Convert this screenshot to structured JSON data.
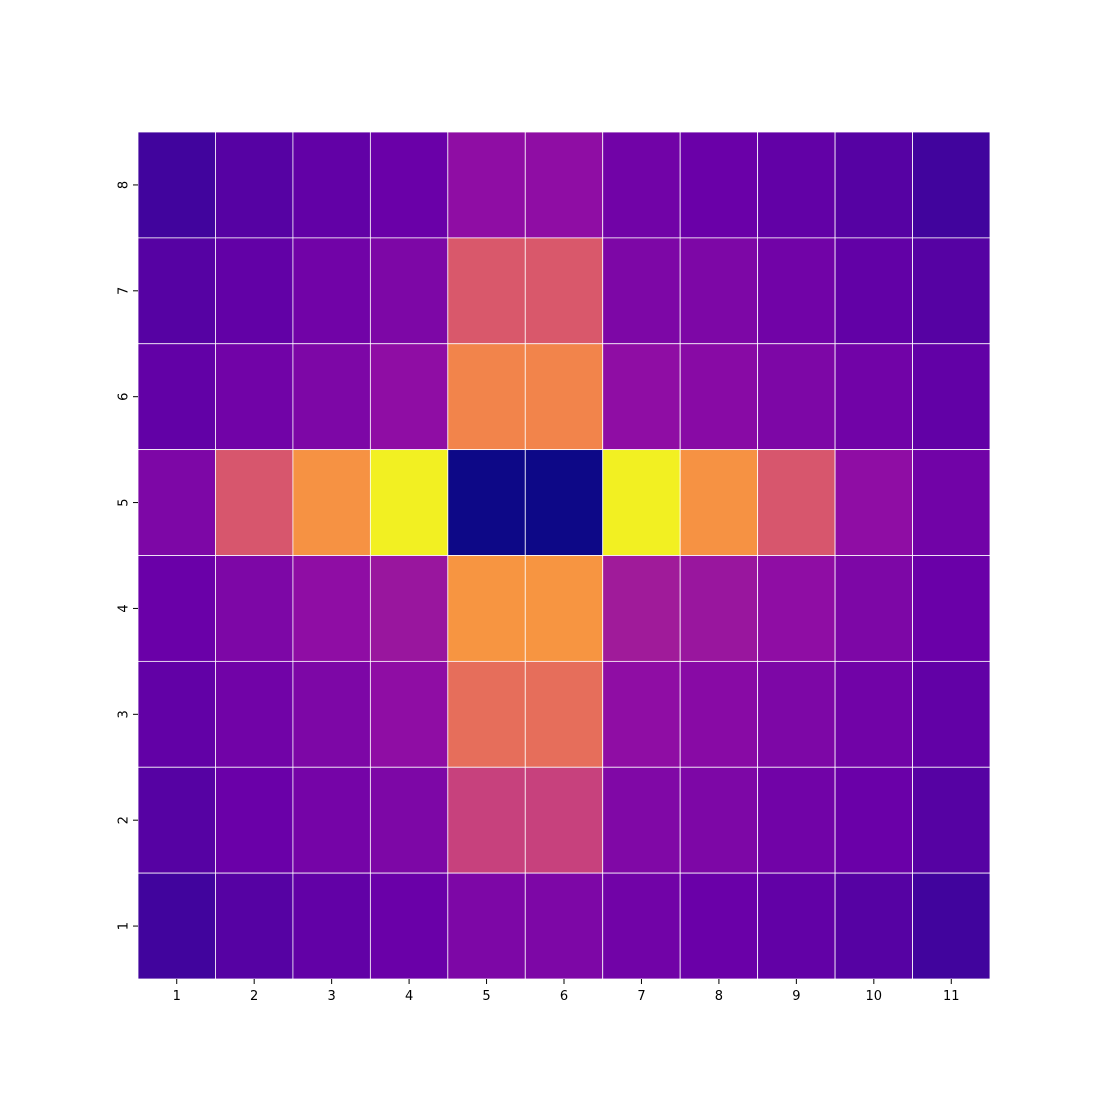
{
  "chart_data": {
    "type": "heatmap",
    "title": "",
    "xlabel": "",
    "ylabel": "",
    "x_tick_labels": [
      "1",
      "2",
      "3",
      "4",
      "5",
      "6",
      "7",
      "8",
      "9",
      "10",
      "11"
    ],
    "y_tick_labels": [
      "8",
      "7",
      "6",
      "5",
      "4",
      "3",
      "2",
      "1"
    ],
    "colormap": "plasma",
    "colorbar": false,
    "grid_line_color": "#ffffff",
    "value_range": [
      0,
      1
    ],
    "values": [
      [
        0.1,
        0.15,
        0.18,
        0.2,
        0.3,
        0.3,
        0.22,
        0.2,
        0.18,
        0.15,
        0.1
      ],
      [
        0.15,
        0.18,
        0.22,
        0.25,
        0.56,
        0.56,
        0.25,
        0.25,
        0.22,
        0.18,
        0.15
      ],
      [
        0.18,
        0.22,
        0.25,
        0.3,
        0.7,
        0.7,
        0.3,
        0.28,
        0.25,
        0.22,
        0.18
      ],
      [
        0.25,
        0.55,
        0.74,
        0.98,
        0.0,
        0.0,
        0.98,
        0.74,
        0.55,
        0.3,
        0.22
      ],
      [
        0.2,
        0.25,
        0.3,
        0.33,
        0.75,
        0.75,
        0.35,
        0.33,
        0.3,
        0.25,
        0.2
      ],
      [
        0.18,
        0.22,
        0.25,
        0.3,
        0.63,
        0.63,
        0.3,
        0.28,
        0.25,
        0.22,
        0.18
      ],
      [
        0.15,
        0.2,
        0.23,
        0.25,
        0.48,
        0.48,
        0.26,
        0.25,
        0.22,
        0.2,
        0.15
      ],
      [
        0.1,
        0.15,
        0.18,
        0.2,
        0.25,
        0.25,
        0.22,
        0.2,
        0.18,
        0.15,
        0.1
      ]
    ]
  }
}
